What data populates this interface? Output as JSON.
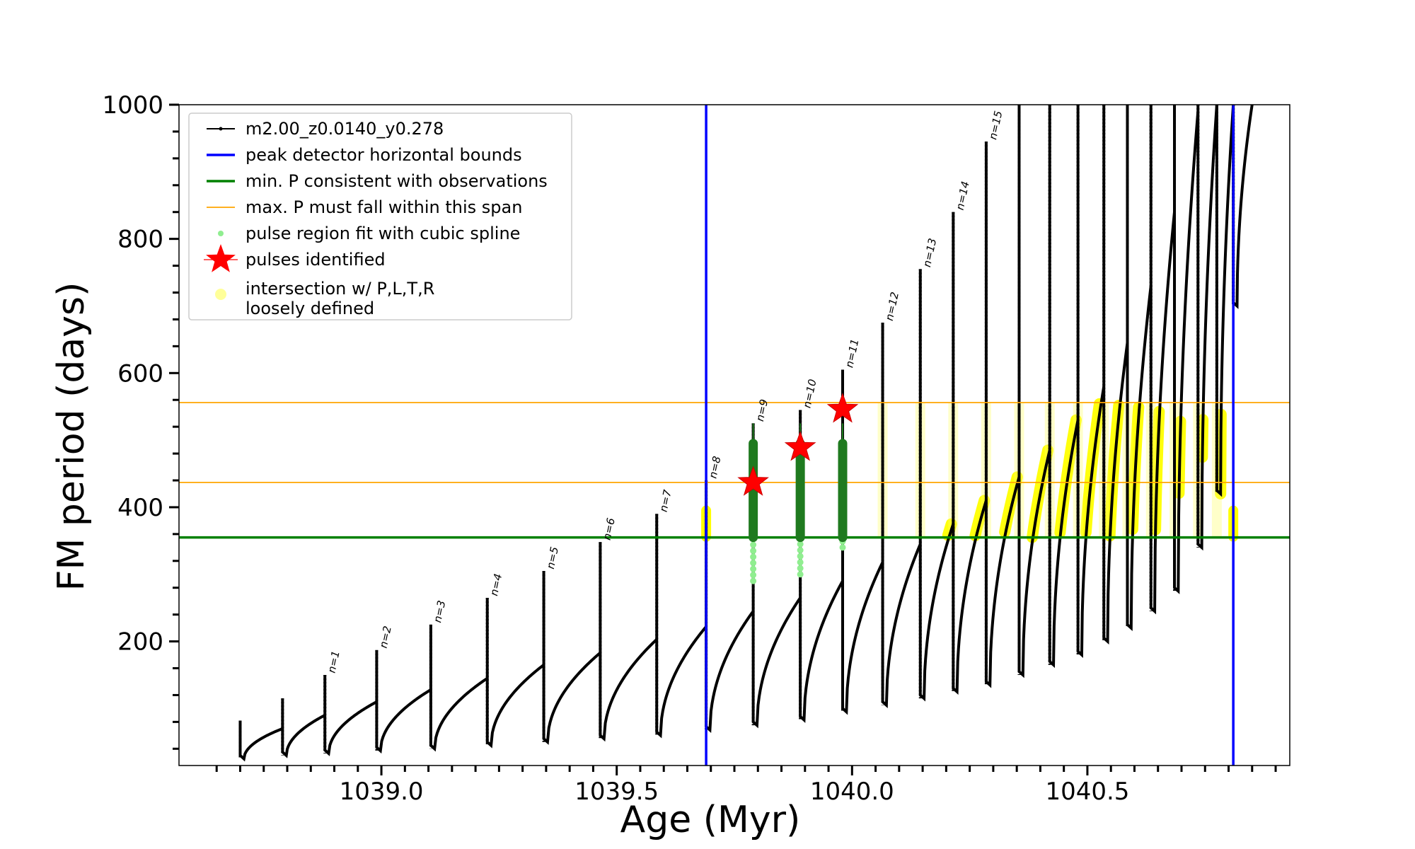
{
  "chart_data": {
    "type": "line",
    "xlabel": "Age (Myr)",
    "ylabel": "FM period (days)",
    "xlim": [
      1038.57,
      1040.93
    ],
    "ylim": [
      15,
      1000
    ],
    "xticks": [
      1039.0,
      1039.5,
      1040.0,
      1040.5
    ],
    "xtick_labels": [
      "1039.0",
      "1039.5",
      "1040.0",
      "1040.5"
    ],
    "yticks": [
      200,
      400,
      600,
      800,
      1000
    ],
    "ytick_labels": [
      "200",
      "400",
      "600",
      "800",
      "1000"
    ],
    "legend_position": "top-left",
    "legend": [
      {
        "label": "m2.00_z0.0140_y0.278",
        "kind": "line-dot",
        "color": "#000000"
      },
      {
        "label": "peak detector horizontal bounds",
        "kind": "line",
        "color": "#0000ff"
      },
      {
        "label": "min. P consistent with observations",
        "kind": "line",
        "color": "#008000"
      },
      {
        "label": "max. P must fall within this span",
        "kind": "thin-line",
        "color": "#ffa500"
      },
      {
        "label": "pulse region fit with cubic spline",
        "kind": "dot",
        "color": "#90ee90"
      },
      {
        "label": "pulses identified",
        "kind": "star",
        "color": "#ff0000"
      },
      {
        "label": "intersection w/ P,L,T,R",
        "label2": "loosely defined",
        "kind": "circle",
        "color": "#ffff99"
      }
    ],
    "vlines": [
      1039.69,
      1040.81
    ],
    "min_period": 355,
    "max_span": [
      437,
      556
    ],
    "pulses": [
      {
        "t0": 1038.7,
        "t1": 1038.79,
        "p0": 25,
        "p1": 70,
        "peak": 82,
        "label": ""
      },
      {
        "t0": 1038.79,
        "t1": 1038.88,
        "p0": 30,
        "p1": 90,
        "peak": 115,
        "label": ""
      },
      {
        "t0": 1038.88,
        "t1": 1038.99,
        "p0": 33,
        "p1": 110,
        "peak": 150,
        "label": "n=1"
      },
      {
        "t0": 1038.99,
        "t1": 1039.105,
        "p0": 37,
        "p1": 128,
        "peak": 187,
        "label": "n=2"
      },
      {
        "t0": 1039.105,
        "t1": 1039.225,
        "p0": 40,
        "p1": 145,
        "peak": 225,
        "label": "n=3"
      },
      {
        "t0": 1039.225,
        "t1": 1039.345,
        "p0": 45,
        "p1": 165,
        "peak": 265,
        "label": "n=4"
      },
      {
        "t0": 1039.345,
        "t1": 1039.465,
        "p0": 50,
        "p1": 183,
        "peak": 305,
        "label": "n=5"
      },
      {
        "t0": 1039.465,
        "t1": 1039.585,
        "p0": 55,
        "p1": 203,
        "peak": 348,
        "label": "n=6"
      },
      {
        "t0": 1039.585,
        "t1": 1039.69,
        "p0": 60,
        "p1": 222,
        "peak": 390,
        "label": "n=7"
      },
      {
        "t0": 1039.69,
        "t1": 1039.79,
        "p0": 68,
        "p1": 245,
        "peak": 440,
        "label": "n=8"
      },
      {
        "t0": 1039.79,
        "t1": 1039.89,
        "p0": 75,
        "p1": 265,
        "peak": 525,
        "label": "n=9"
      },
      {
        "t0": 1039.89,
        "t1": 1039.98,
        "p0": 83,
        "p1": 290,
        "peak": 545,
        "label": "n=10"
      },
      {
        "t0": 1039.98,
        "t1": 1040.065,
        "p0": 95,
        "p1": 318,
        "peak": 605,
        "label": "n=11"
      },
      {
        "t0": 1040.065,
        "t1": 1040.145,
        "p0": 105,
        "p1": 345,
        "peak": 675,
        "label": "n=12"
      },
      {
        "t0": 1040.145,
        "t1": 1040.215,
        "p0": 115,
        "p1": 375,
        "peak": 755,
        "label": "n=13"
      },
      {
        "t0": 1040.215,
        "t1": 1040.285,
        "p0": 125,
        "p1": 410,
        "peak": 840,
        "label": "n=14"
      },
      {
        "t0": 1040.285,
        "t1": 1040.355,
        "p0": 135,
        "p1": 445,
        "peak": 945,
        "label": "n=15"
      },
      {
        "t0": 1040.355,
        "t1": 1040.42,
        "p0": 150,
        "p1": 485,
        "peak": 1000,
        "label": ""
      },
      {
        "t0": 1040.42,
        "t1": 1040.48,
        "p0": 165,
        "p1": 530,
        "peak": 1000,
        "label": ""
      },
      {
        "t0": 1040.48,
        "t1": 1040.535,
        "p0": 180,
        "p1": 580,
        "peak": 1000,
        "label": ""
      },
      {
        "t0": 1040.535,
        "t1": 1040.585,
        "p0": 200,
        "p1": 645,
        "peak": 1000,
        "label": ""
      },
      {
        "t0": 1040.585,
        "t1": 1040.635,
        "p0": 220,
        "p1": 730,
        "peak": 1000,
        "label": ""
      },
      {
        "t0": 1040.635,
        "t1": 1040.685,
        "p0": 245,
        "p1": 840,
        "peak": 1000,
        "label": ""
      },
      {
        "t0": 1040.685,
        "t1": 1040.735,
        "p0": 275,
        "p1": 990,
        "peak": 1000,
        "label": ""
      },
      {
        "t0": 1040.735,
        "t1": 1040.775,
        "p0": 340,
        "p1": 1000,
        "peak": 1000,
        "label": ""
      },
      {
        "t0": 1040.775,
        "t1": 1040.81,
        "p0": 420,
        "p1": 1000,
        "peak": 1000,
        "label": ""
      },
      {
        "t0": 1040.81,
        "t1": 1040.85,
        "p0": 700,
        "p1": 1000,
        "peak": 1000,
        "label": ""
      }
    ],
    "identified_pulses": [
      {
        "age": 1039.79,
        "period": 437
      },
      {
        "age": 1039.89,
        "period": 489
      },
      {
        "age": 1039.98,
        "period": 546
      }
    ],
    "green_fit_ranges": [
      {
        "age": 1039.79,
        "low": 355,
        "high": 495
      },
      {
        "age": 1039.89,
        "low": 355,
        "high": 495
      },
      {
        "age": 1039.98,
        "low": 355,
        "high": 495
      }
    ],
    "lightgreen_ranges": [
      {
        "age": 1039.79,
        "low": 290,
        "high": 355
      },
      {
        "age": 1039.89,
        "low": 300,
        "high": 355
      },
      {
        "age": 1039.98,
        "low": 340,
        "high": 355
      }
    ]
  }
}
